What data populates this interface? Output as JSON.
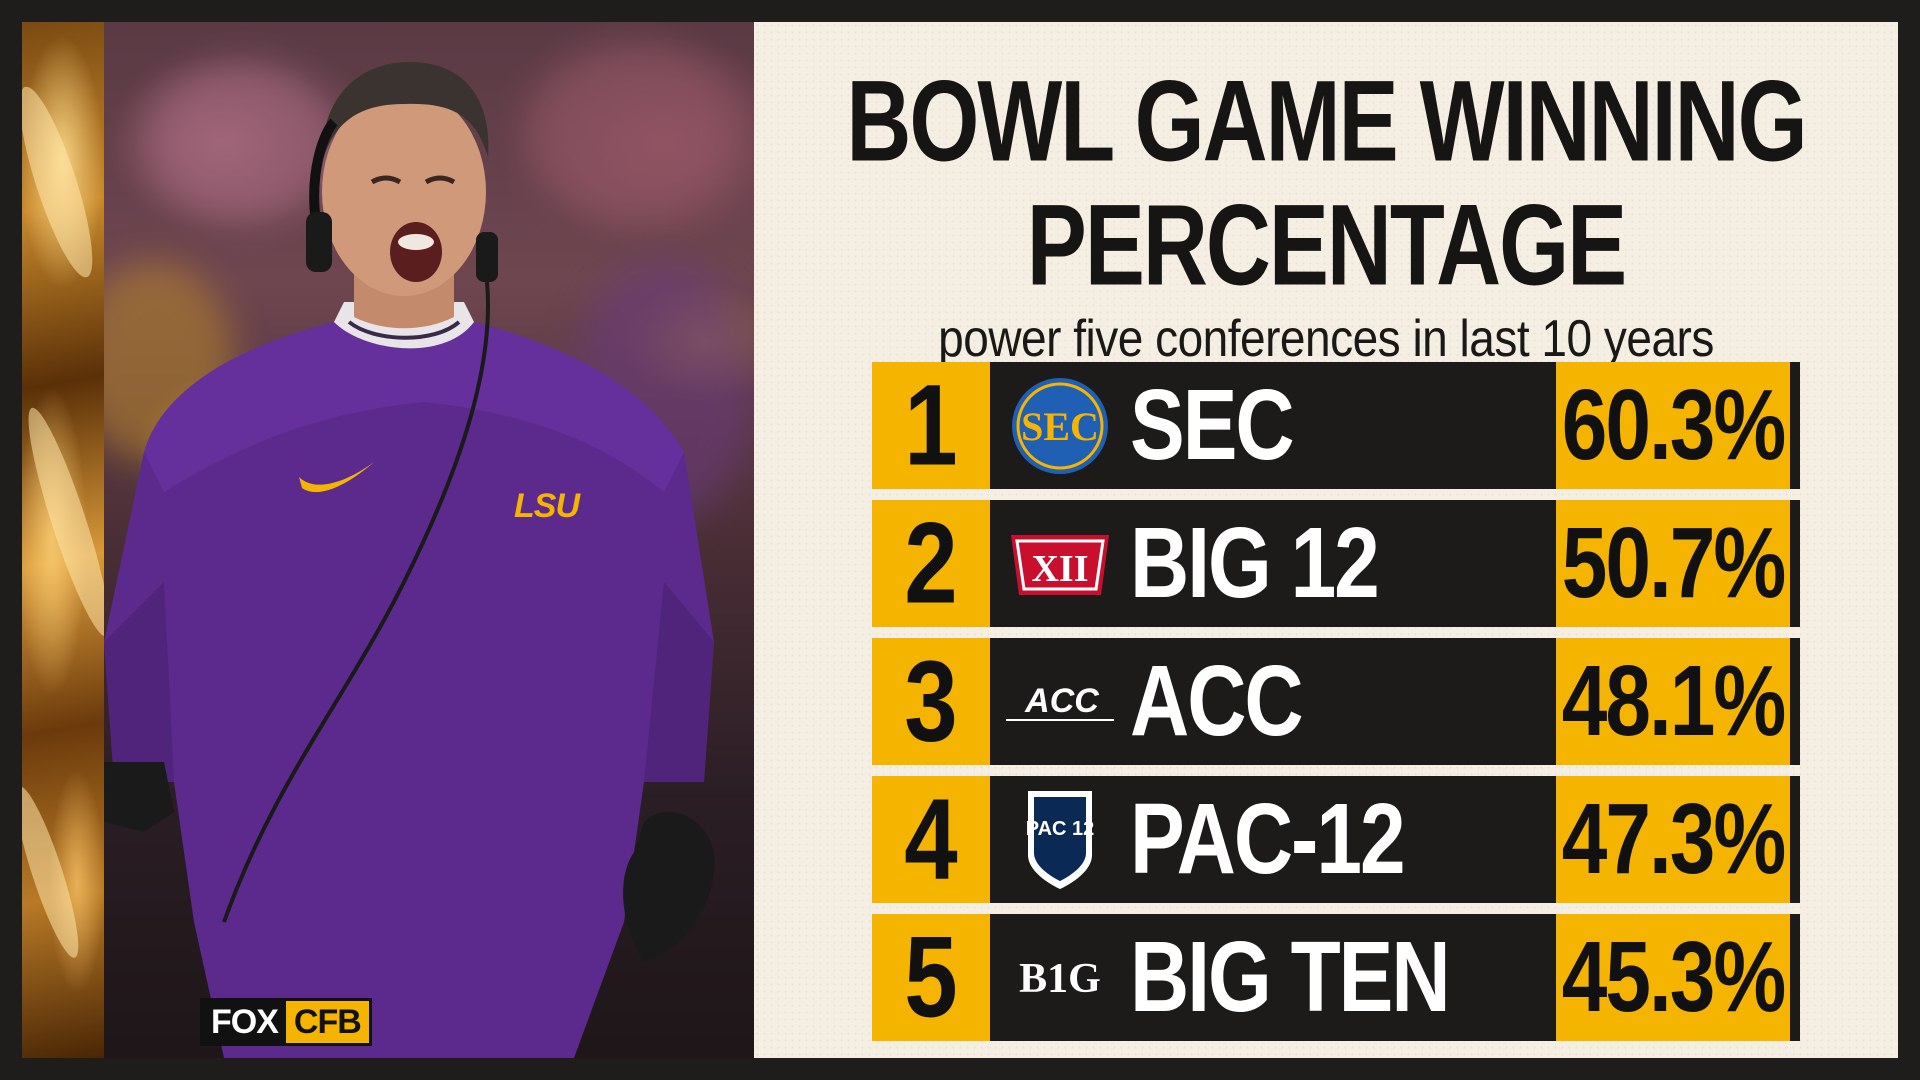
{
  "brand": {
    "network": "FOX",
    "program": "CFB",
    "colors": {
      "gold": "#f5b400",
      "dark": "#1c1b19",
      "cream": "#f4efe2",
      "lsu_purple": "#5b2a8c"
    }
  },
  "photo": {
    "jersey_mark": "LSU",
    "icons": [
      "swoosh-icon"
    ]
  },
  "chart_data": {
    "type": "table",
    "title": "BOWL GAME WINNING",
    "title_line2": "PERCENTAGE",
    "subtitle": "power five conferences in last 10 years",
    "columns": [
      "rank",
      "conference",
      "winning_percentage"
    ],
    "rows": [
      {
        "rank": "1",
        "conference": "SEC",
        "logo": "SEC",
        "logo_icon": "sec-logo-icon",
        "pct_label": "60.3%",
        "value": 60.3
      },
      {
        "rank": "2",
        "conference": "BIG 12",
        "logo": "XII",
        "logo_icon": "big12-logo-icon",
        "pct_label": "50.7%",
        "value": 50.7
      },
      {
        "rank": "3",
        "conference": "ACC",
        "logo": "ACC",
        "logo_icon": "acc-logo-icon",
        "pct_label": "48.1%",
        "value": 48.1
      },
      {
        "rank": "4",
        "conference": "PAC-12",
        "logo": "PAC 12",
        "logo_icon": "pac12-logo-icon",
        "pct_label": "47.3%",
        "value": 47.3
      },
      {
        "rank": "5",
        "conference": "BIG TEN",
        "logo": "B1G",
        "logo_icon": "big-ten-logo-icon",
        "pct_label": "45.3%",
        "value": 45.3
      }
    ]
  }
}
